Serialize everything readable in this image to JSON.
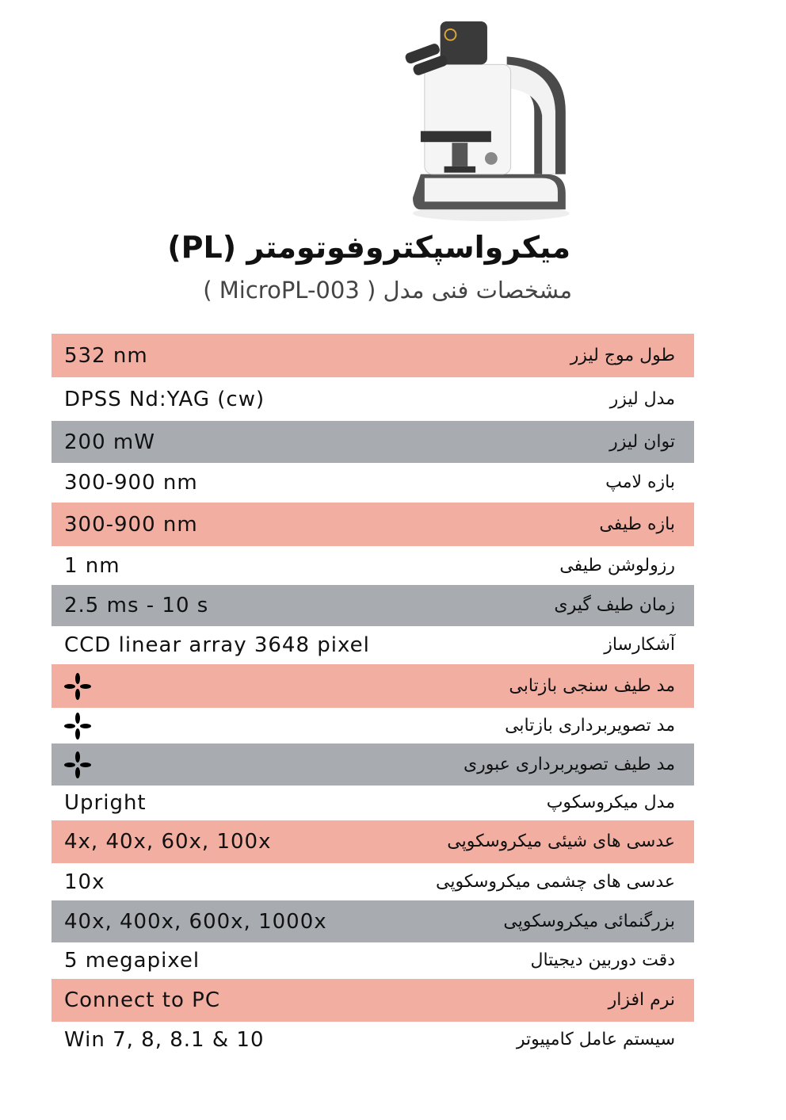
{
  "header": {
    "title": "میکرواسپکتروفوتومتر (PL)",
    "subtitle": "مشخصات فنی  مدل ( MicroPL-003 )"
  },
  "colors": {
    "pink": "#f2aea0",
    "gray": "#a8acb1",
    "white": "#ffffff"
  },
  "rows": [
    {
      "label": "طول موج لیزر",
      "value": "532 nm",
      "bg": "pink"
    },
    {
      "label": "مدل لیزر",
      "value": "DPSS Nd:YAG (cw)",
      "bg": "white"
    },
    {
      "label": "توان لیزر",
      "value": "200 mW",
      "bg": "gray"
    },
    {
      "label": "بازه لامپ",
      "value": "300-900 nm",
      "bg": "white"
    },
    {
      "label": "بازه طیفی",
      "value": "300-900 nm",
      "bg": "pink"
    },
    {
      "label": "رزولوشن طیفی",
      "value": "1 nm",
      "bg": "white"
    },
    {
      "label": "زمان طیف گیری",
      "value": "2.5 ms - 10 s",
      "bg": "gray"
    },
    {
      "label": "آشکارساز",
      "value": "CCD linear array 3648 pixel",
      "bg": "white"
    },
    {
      "label": "مد  طیف سنجی بازتابی",
      "value": "",
      "icon": "four-petal-check-icon",
      "bg": "pink"
    },
    {
      "label": "مد  تصویربرداری بازتابی",
      "value": "",
      "icon": "four-petal-check-icon",
      "bg": "white"
    },
    {
      "label": "مد  طیف تصویربرداری عبوری",
      "value": "",
      "icon": "four-petal-check-icon",
      "bg": "gray"
    },
    {
      "label": "مدل میکروسکوپ",
      "value": "Upright",
      "bg": "white"
    },
    {
      "label": "عدسی های شیئی میکروسکوپی",
      "value": "4x, 40x, 60x, 100x",
      "bg": "pink"
    },
    {
      "label": "عدسی های چشمی میکروسکوپی",
      "value": "10x",
      "bg": "white"
    },
    {
      "label": "بزرگنمائی میکروسکوپی",
      "value": "40x, 400x, 600x, 1000x",
      "bg": "gray"
    },
    {
      "label": "دقت دوربین دیجیتال",
      "value": "5 megapixel",
      "bg": "white"
    },
    {
      "label": "نرم افزار",
      "value": "Connect to PC",
      "bg": "pink"
    },
    {
      "label": "سیستم عامل کامپیوتر",
      "value": "Win 7, 8, 8.1 & 10",
      "bg": "white"
    }
  ]
}
